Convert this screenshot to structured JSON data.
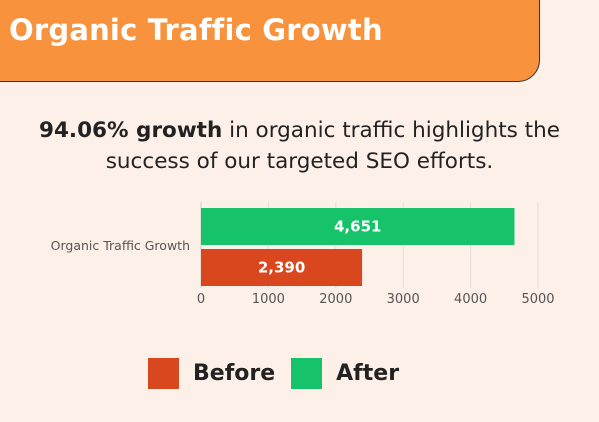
{
  "header": {
    "title": "Organic Traffic Growth",
    "color": "#f8923c"
  },
  "headline": {
    "bold": "94.06% growth",
    "line1_rest": " in organic traffic highlights the",
    "line2": "success of our targeted SEO efforts."
  },
  "chart_data": {
    "type": "bar",
    "orientation": "horizontal",
    "categories": [
      "Organic Traffic Growth"
    ],
    "series": [
      {
        "name": "After",
        "values": [
          4651
        ],
        "labels": [
          "4,651"
        ],
        "color": "#17c36a"
      },
      {
        "name": "Before",
        "values": [
          2390
        ],
        "labels": [
          "2,390"
        ],
        "color": "#d9471f"
      }
    ],
    "xlim": [
      0,
      5000
    ],
    "xticks": [
      0,
      1000,
      2000,
      3000,
      4000,
      5000
    ],
    "grid": true,
    "legend_position": "bottom"
  },
  "legend": [
    {
      "label": "Before",
      "color": "#d9471f"
    },
    {
      "label": "After",
      "color": "#17c36a"
    }
  ]
}
